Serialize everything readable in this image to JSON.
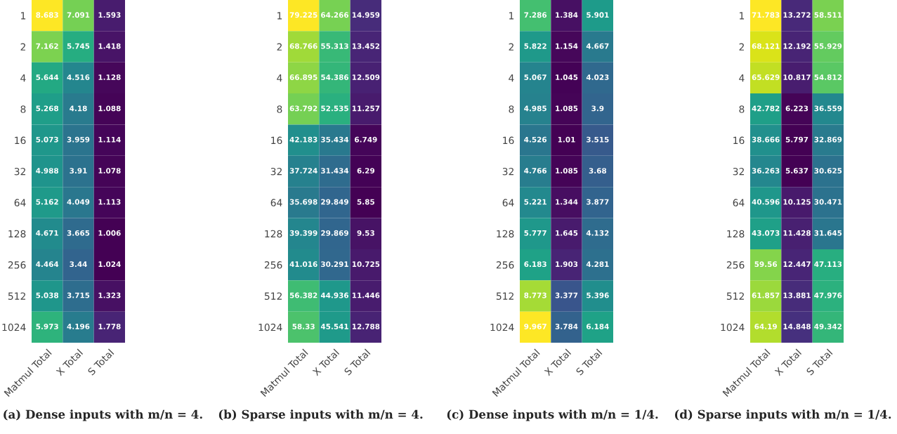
{
  "chart_data": [
    {
      "type": "heatmap",
      "title": "(a) Dense inputs with m/n = 4.",
      "categories": [
        "Matmul Total",
        "X Total",
        "S Total"
      ],
      "y_categories": [
        "1",
        "2",
        "4",
        "8",
        "16",
        "32",
        "64",
        "128",
        "256",
        "512",
        "1024"
      ],
      "data_labels": true,
      "cells": [
        [
          8.683,
          7.091,
          1.593
        ],
        [
          7.162,
          5.745,
          1.418
        ],
        [
          5.644,
          4.516,
          1.128
        ],
        [
          5.268,
          4.18,
          1.088
        ],
        [
          5.073,
          3.959,
          1.114
        ],
        [
          4.988,
          3.91,
          1.078
        ],
        [
          5.162,
          4.049,
          1.113
        ],
        [
          4.671,
          3.665,
          1.006
        ],
        [
          4.464,
          3.44,
          1.024
        ],
        [
          5.038,
          3.715,
          1.323
        ],
        [
          5.973,
          4.196,
          1.778
        ]
      ]
    },
    {
      "type": "heatmap",
      "title": "(b) Sparse inputs with m/n = 4.",
      "categories": [
        "Matmul Total",
        "X Total",
        "S Total"
      ],
      "y_categories": [
        "1",
        "2",
        "4",
        "8",
        "16",
        "32",
        "64",
        "128",
        "256",
        "512",
        "1024"
      ],
      "data_labels": true,
      "cells": [
        [
          79.225,
          64.266,
          14.959
        ],
        [
          68.766,
          55.313,
          13.452
        ],
        [
          66.895,
          54.386,
          12.509
        ],
        [
          63.792,
          52.535,
          11.257
        ],
        [
          42.183,
          35.434,
          6.749
        ],
        [
          37.724,
          31.434,
          6.29
        ],
        [
          35.698,
          29.849,
          5.85
        ],
        [
          39.399,
          29.869,
          9.53
        ],
        [
          41.016,
          30.291,
          10.725
        ],
        [
          56.382,
          44.936,
          11.446
        ],
        [
          58.33,
          45.541,
          12.788
        ]
      ]
    },
    {
      "type": "heatmap",
      "title": "(c) Dense inputs with m/n = 1/4.",
      "categories": [
        "Matmul Total",
        "X Total",
        "S Total"
      ],
      "y_categories": [
        "1",
        "2",
        "4",
        "8",
        "16",
        "32",
        "64",
        "128",
        "256",
        "512",
        "1024"
      ],
      "data_labels": true,
      "cells": [
        [
          7.286,
          1.384,
          5.901
        ],
        [
          5.822,
          1.154,
          4.667
        ],
        [
          5.067,
          1.045,
          4.023
        ],
        [
          4.985,
          1.085,
          3.9
        ],
        [
          4.526,
          1.01,
          3.515
        ],
        [
          4.766,
          1.085,
          3.68
        ],
        [
          5.221,
          1.344,
          3.877
        ],
        [
          5.777,
          1.645,
          4.132
        ],
        [
          6.183,
          1.903,
          4.281
        ],
        [
          8.773,
          3.377,
          5.396
        ],
        [
          9.967,
          3.784,
          6.184
        ]
      ]
    },
    {
      "type": "heatmap",
      "title": "(d) Sparse inputs with m/n = 1/4.",
      "categories": [
        "Matmul Total",
        "X Total",
        "S Total"
      ],
      "y_categories": [
        "1",
        "2",
        "4",
        "8",
        "16",
        "32",
        "64",
        "128",
        "256",
        "512",
        "1024"
      ],
      "data_labels": true,
      "cells": [
        [
          71.783,
          13.272,
          58.511
        ],
        [
          68.121,
          12.192,
          55.929
        ],
        [
          65.629,
          10.817,
          54.812
        ],
        [
          42.782,
          6.223,
          36.559
        ],
        [
          38.666,
          5.797,
          32.869
        ],
        [
          36.263,
          5.637,
          30.625
        ],
        [
          40.596,
          10.125,
          30.471
        ],
        [
          43.073,
          11.428,
          31.645
        ],
        [
          59.56,
          12.447,
          47.113
        ],
        [
          61.857,
          13.881,
          47.976
        ],
        [
          64.19,
          14.848,
          49.342
        ]
      ]
    }
  ]
}
